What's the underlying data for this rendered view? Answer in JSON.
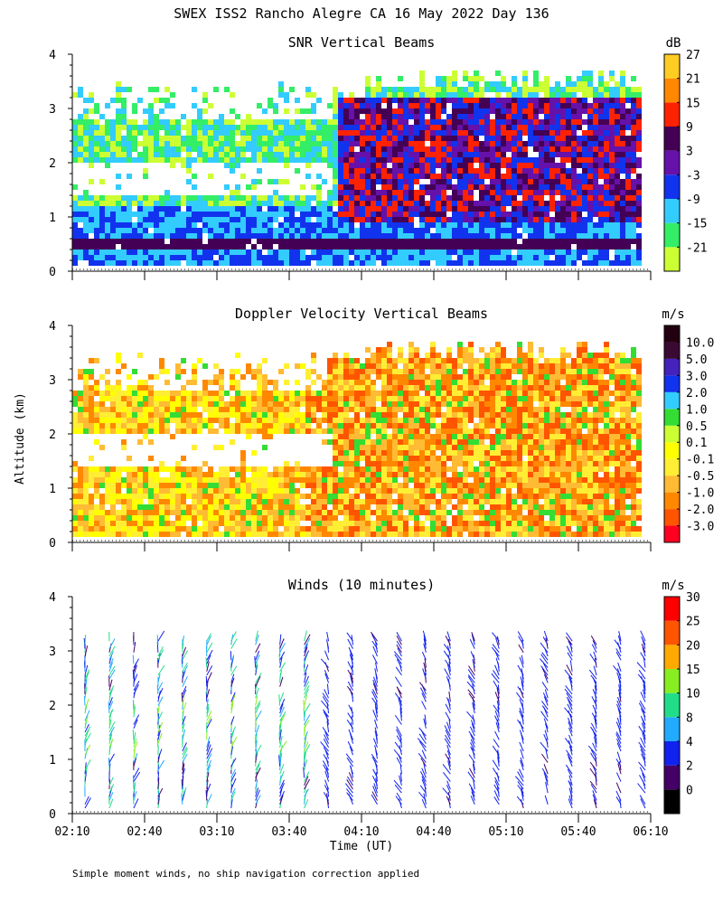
{
  "title": "SWEX ISS2 Rancho Alegre CA  16 May 2022 Day 136",
  "ylabel": "Altitude (km)",
  "xlabel": "Time (UT)",
  "footnote": "Simple moment winds, no ship navigation correction applied",
  "chart_data": [
    {
      "type": "heatmap",
      "title": "SNR Vertical Beams",
      "units": "dB",
      "ylim": [
        0,
        4
      ],
      "yticks": [
        "0",
        "1",
        "2",
        "3",
        "4"
      ],
      "x_range_minutes_ut": [
        130,
        370
      ],
      "colorbar": {
        "tick_labels": [
          "-21",
          "-15",
          "-9",
          "-3",
          "3",
          "9",
          "15",
          "21",
          "27"
        ],
        "colors": [
          "#ccff33",
          "#33ee66",
          "#33ccff",
          "#1133ee",
          "#6611aa",
          "#440055",
          "#ff2200",
          "#ff8800",
          "#ffcc22"
        ]
      }
    },
    {
      "type": "heatmap",
      "title": "Doppler Velocity Vertical Beams",
      "units": "m/s",
      "ylim": [
        0,
        4
      ],
      "yticks": [
        "0",
        "1",
        "2",
        "3",
        "4"
      ],
      "x_range_minutes_ut": [
        130,
        370
      ],
      "colorbar": {
        "tick_labels": [
          "-3.0",
          "-2.0",
          "-1.0",
          "-0.5",
          "-0.1",
          "0.1",
          "0.5",
          "1.0",
          "2.0",
          "3.0",
          "5.0",
          "10.0"
        ],
        "colors": [
          "#ff0022",
          "#ff5500",
          "#ff8800",
          "#ffbb33",
          "#ffee33",
          "#ffff00",
          "#ccff33",
          "#33dd33",
          "#33ccff",
          "#1133ee",
          "#4422bb",
          "#3a0a33",
          "#220011"
        ]
      }
    },
    {
      "type": "wind_barbs",
      "title": "Winds (10 minutes)",
      "units": "m/s",
      "ylim": [
        0,
        4
      ],
      "yticks": [
        "0",
        "1",
        "2",
        "3",
        "4"
      ],
      "xticks": [
        "02:10",
        "02:40",
        "03:10",
        "03:40",
        "04:10",
        "04:40",
        "05:10",
        "05:40",
        "06:10"
      ],
      "profile_interval_minutes": 10,
      "colorbar": {
        "tick_labels": [
          "0",
          "2",
          "4",
          "8",
          "10",
          "15",
          "20",
          "25",
          "30"
        ],
        "colors": [
          "#000000",
          "#440066",
          "#1122ee",
          "#22aaff",
          "#22dd88",
          "#88ee22",
          "#ffaa00",
          "#ff5500",
          "#ff0000"
        ]
      }
    }
  ]
}
